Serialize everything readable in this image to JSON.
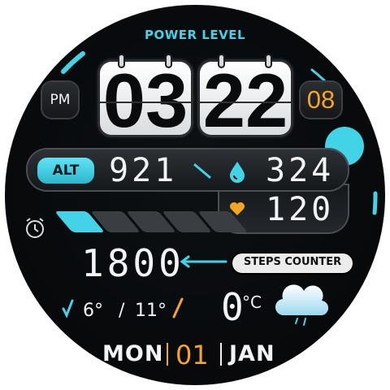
{
  "header": {
    "power_level_label": "POWER LEVEL"
  },
  "time": {
    "ampm": "PM",
    "hour": "03",
    "minute": "22",
    "second": "08"
  },
  "altitude": {
    "label": "ALT",
    "value": "921"
  },
  "humidity": {
    "value": "324",
    "icon": "droplet-icon"
  },
  "heart_rate": {
    "value": "120",
    "icon": "heart-icon"
  },
  "alarm": {
    "icon": "alarm-clock-icon"
  },
  "battery": {
    "segments_total": 5,
    "segments_filled": 1
  },
  "steps": {
    "value": "1800",
    "label": "STEPS COUNTER"
  },
  "temperature": {
    "low": "6°",
    "separator": "/",
    "high": "11°",
    "current": "0",
    "unit": "°C",
    "weather_icon": "cloud-rain-icon"
  },
  "date": {
    "weekday": "MON",
    "day": "01",
    "month": "JAN"
  },
  "colors": {
    "accent": "#42d3e6",
    "orange": "#f5a524",
    "white": "#f2f4f6",
    "bg": "#07090b"
  }
}
